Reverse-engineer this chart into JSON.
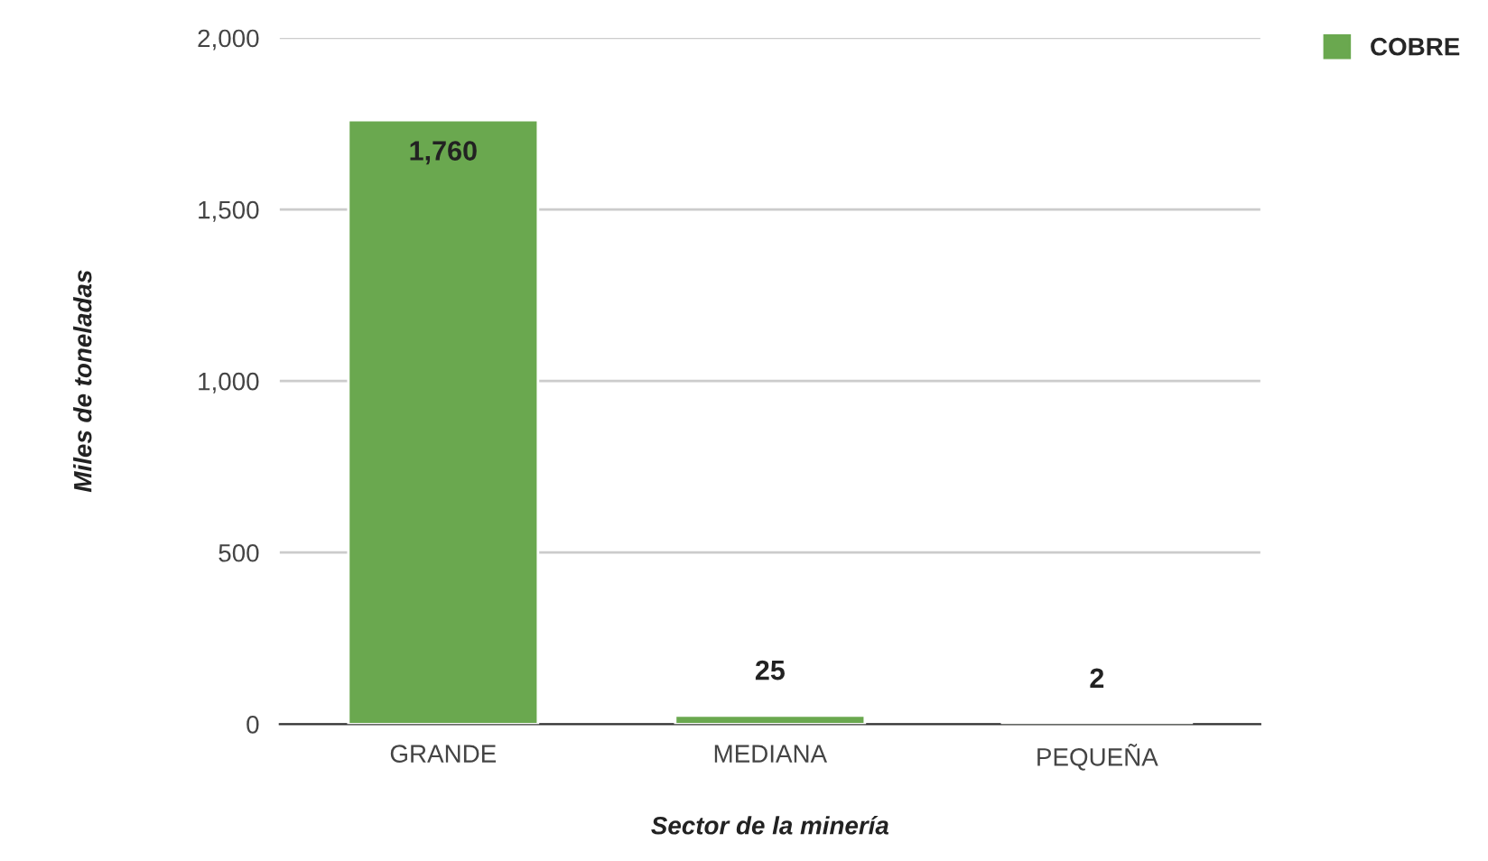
{
  "chart_data": {
    "type": "bar",
    "xlabel": "Sector de la minería",
    "ylabel": "Miles de toneladas",
    "categories": [
      "GRANDE",
      "MEDIANA",
      "PEQUEÑA"
    ],
    "series": [
      {
        "name": "COBRE",
        "color": "#6aa84f",
        "values": [
          1760,
          25,
          2
        ],
        "value_labels": [
          "1,760",
          "25",
          "2"
        ]
      }
    ],
    "ylim": [
      0,
      2000
    ],
    "yticks": [
      0,
      {
        "value": 500,
        "label": "500"
      },
      {
        "value": 1000,
        "label": "1,000"
      },
      {
        "value": 1500,
        "label": "1,500"
      },
      {
        "value": 2000,
        "label": "2,000"
      }
    ],
    "grid": "y",
    "legend": "top right"
  }
}
